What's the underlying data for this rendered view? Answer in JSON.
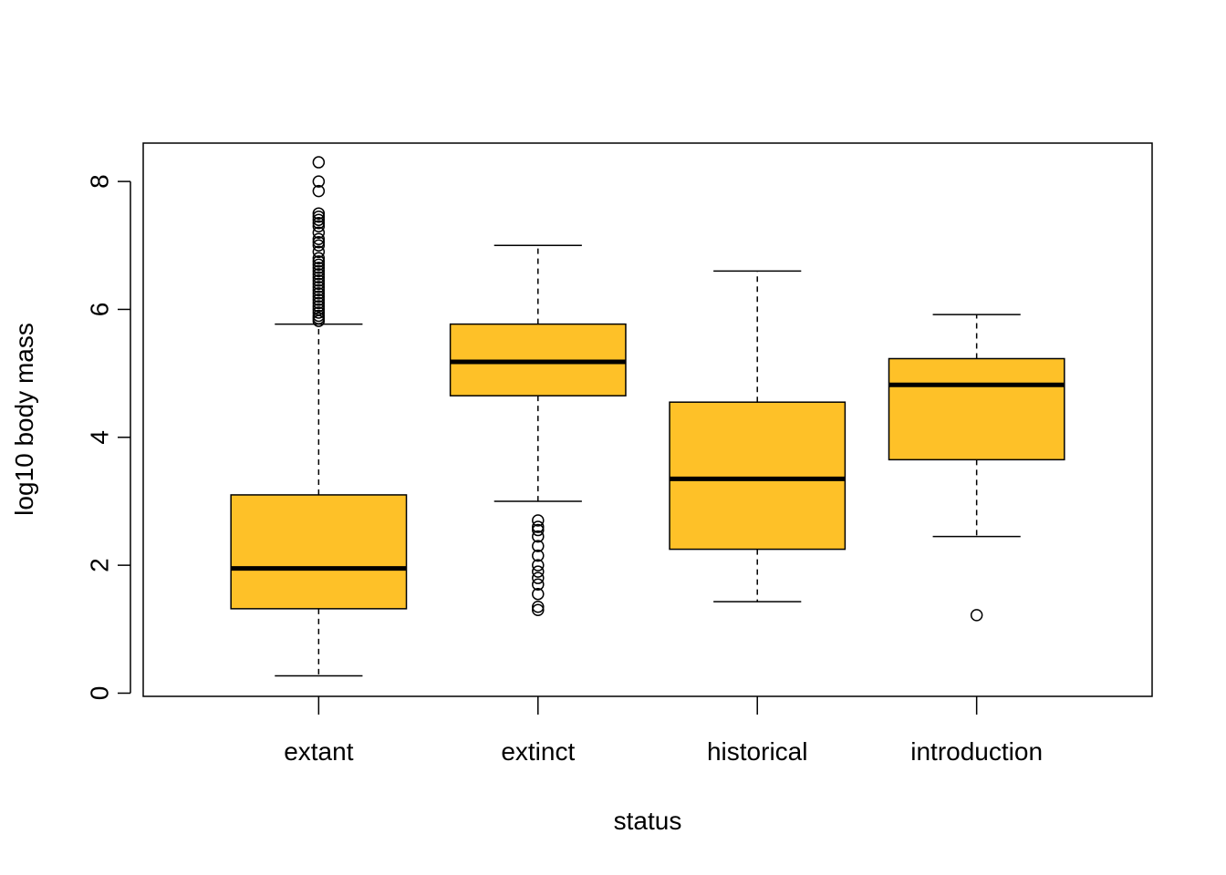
{
  "chart_data": {
    "type": "boxplot",
    "title": "",
    "xlabel": "status",
    "ylabel": "log10 body mass",
    "ylim": [
      -0.05,
      8.6
    ],
    "yticks": [
      0,
      2,
      4,
      6,
      8
    ],
    "grid": false,
    "box_color": "#FEC128",
    "categories": [
      "extant",
      "extinct",
      "historical",
      "introduction"
    ],
    "series": [
      {
        "category": "extant",
        "whisker_low": 0.27,
        "q1": 1.32,
        "median": 1.95,
        "q3": 3.1,
        "whisker_high": 5.77,
        "outliers": [
          5.82,
          5.86,
          5.9,
          5.95,
          6.0,
          6.05,
          6.1,
          6.15,
          6.2,
          6.25,
          6.3,
          6.35,
          6.4,
          6.45,
          6.5,
          6.55,
          6.6,
          6.65,
          6.7,
          6.75,
          6.8,
          6.9,
          7.0,
          7.05,
          7.1,
          7.2,
          7.3,
          7.35,
          7.4,
          7.45,
          7.5,
          7.85,
          8.0,
          8.3
        ]
      },
      {
        "category": "extinct",
        "whisker_low": 3.0,
        "q1": 4.65,
        "median": 5.18,
        "q3": 5.77,
        "whisker_high": 7.0,
        "outliers": [
          2.7,
          2.6,
          2.55,
          2.45,
          2.3,
          2.15,
          2.0,
          1.9,
          1.8,
          1.7,
          1.55,
          1.35,
          1.3
        ]
      },
      {
        "category": "historical",
        "whisker_low": 1.43,
        "q1": 2.25,
        "median": 3.35,
        "q3": 4.55,
        "whisker_high": 6.6,
        "outliers": []
      },
      {
        "category": "introduction",
        "whisker_low": 2.45,
        "q1": 3.65,
        "median": 4.82,
        "q3": 5.23,
        "whisker_high": 5.92,
        "outliers": [
          1.22
        ]
      }
    ]
  }
}
